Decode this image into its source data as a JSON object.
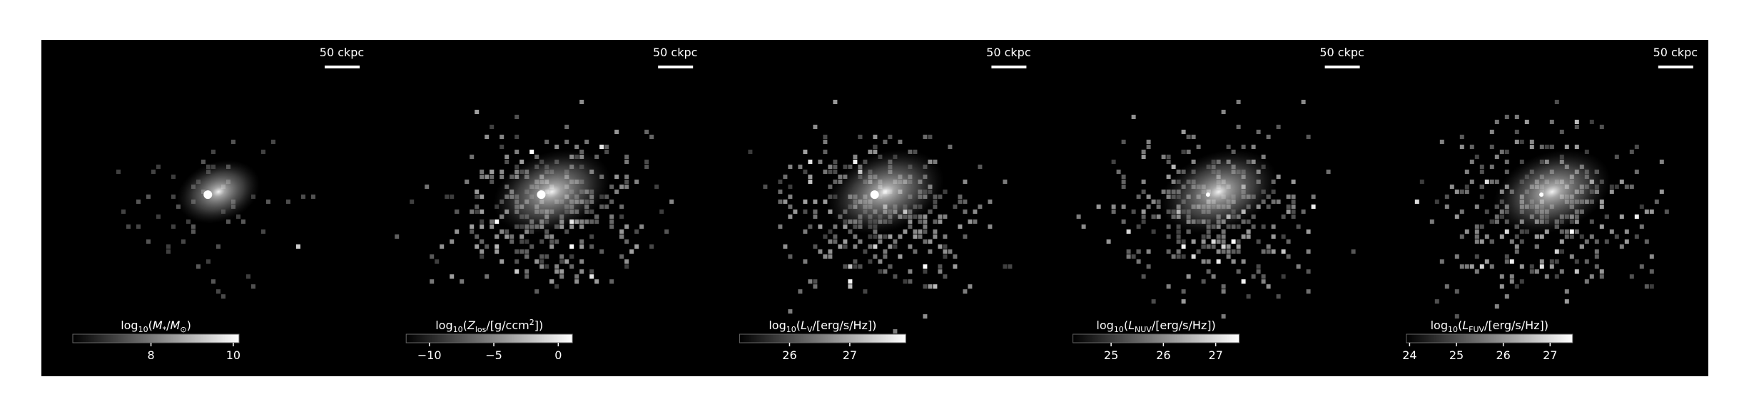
{
  "figure": {
    "panels": [
      {
        "scale_bar": "50 ckpc",
        "colorbar_label": [
          {
            "text": "log"
          },
          {
            "text": "10",
            "sub": true
          },
          {
            "text": "("
          },
          {
            "text": "M",
            "italic": true
          },
          {
            "text": "*",
            "sub": true
          },
          {
            "text": "/"
          },
          {
            "text": "M",
            "italic": true
          },
          {
            "text": "⊙",
            "sub": true
          },
          {
            "text": ")"
          }
        ],
        "clim": [
          6.1,
          10.14
        ],
        "ticks": [
          8,
          10
        ]
      },
      {
        "scale_bar": "50 ckpc",
        "colorbar_label": [
          {
            "text": "log"
          },
          {
            "text": "10",
            "sub": true
          },
          {
            "text": "("
          },
          {
            "text": "Z",
            "italic": true
          },
          {
            "text": "los",
            "sub": true
          },
          {
            "text": "/[g/ccm"
          },
          {
            "text": "2",
            "sup": true
          },
          {
            "text": "])"
          }
        ],
        "clim": [
          -11.8,
          1.1
        ],
        "ticks": [
          {
            "value": -10,
            "label": "−10"
          },
          {
            "value": -5,
            "label": "−5"
          },
          0
        ]
      },
      {
        "scale_bar": "50 ckpc",
        "colorbar_label": [
          {
            "text": "log"
          },
          {
            "text": "10",
            "sub": true
          },
          {
            "text": "("
          },
          {
            "text": "L",
            "italic": true
          },
          {
            "text": "V",
            "sub": true
          },
          {
            "text": "/[erg/s/Hz])"
          }
        ],
        "clim": [
          25.17,
          27.93
        ],
        "ticks": [
          26,
          27
        ]
      },
      {
        "scale_bar": "50 ckpc",
        "colorbar_label": [
          {
            "text": "log"
          },
          {
            "text": "10",
            "sub": true
          },
          {
            "text": "("
          },
          {
            "text": "L",
            "italic": true
          },
          {
            "text": "NUV",
            "sub": true
          },
          {
            "text": "/[erg/s/Hz])"
          }
        ],
        "clim": [
          24.27,
          27.45
        ],
        "ticks": [
          25,
          26,
          27
        ]
      },
      {
        "scale_bar": "50 ckpc",
        "colorbar_label": [
          {
            "text": "log"
          },
          {
            "text": "10",
            "sub": true
          },
          {
            "text": "("
          },
          {
            "text": "L",
            "italic": true
          },
          {
            "text": "FUV",
            "sub": true
          },
          {
            "text": "/[erg/s/Hz])"
          }
        ],
        "clim": [
          23.93,
          27.48
        ],
        "ticks": [
          24,
          25,
          26,
          27
        ]
      }
    ]
  }
}
